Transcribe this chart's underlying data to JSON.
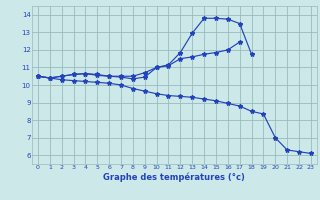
{
  "title": "Graphe des températures (°c)",
  "line_color": "#2244bb",
  "bg_color": "#cce8e8",
  "grid_color": "#99bbbb",
  "ylabel_min": 6,
  "ylabel_max": 14,
  "xlim": [
    -0.5,
    23.5
  ],
  "ylim": [
    5.5,
    14.5
  ],
  "line1_x": [
    0,
    1,
    2,
    3,
    4,
    5,
    6,
    7,
    8,
    9,
    10,
    11,
    12,
    13,
    14,
    15,
    16,
    17,
    18
  ],
  "line1_y": [
    10.5,
    10.4,
    10.5,
    10.6,
    10.65,
    10.55,
    10.5,
    10.45,
    10.35,
    10.45,
    11.0,
    11.15,
    11.85,
    12.95,
    13.8,
    13.8,
    13.75,
    13.5,
    11.75
  ],
  "line2_x": [
    0,
    1,
    2,
    3,
    4,
    5,
    6,
    7,
    8,
    9,
    10,
    11,
    12,
    13,
    14,
    15,
    16,
    17
  ],
  "line2_y": [
    10.5,
    10.4,
    10.5,
    10.6,
    10.65,
    10.6,
    10.5,
    10.5,
    10.5,
    10.7,
    11.0,
    11.1,
    11.5,
    11.6,
    11.75,
    11.85,
    12.0,
    12.45
  ],
  "line3_x": [
    0,
    1,
    2,
    3,
    4,
    5,
    6,
    7,
    8,
    9,
    10,
    11,
    12,
    13,
    14,
    15,
    16,
    17,
    18,
    19,
    20,
    21,
    22,
    23
  ],
  "line3_y": [
    10.5,
    10.4,
    10.3,
    10.25,
    10.2,
    10.15,
    10.1,
    10.0,
    9.8,
    9.65,
    9.5,
    9.4,
    9.35,
    9.3,
    9.2,
    9.1,
    8.95,
    8.8,
    8.5,
    8.35,
    7.0,
    6.3,
    6.2,
    6.1
  ]
}
